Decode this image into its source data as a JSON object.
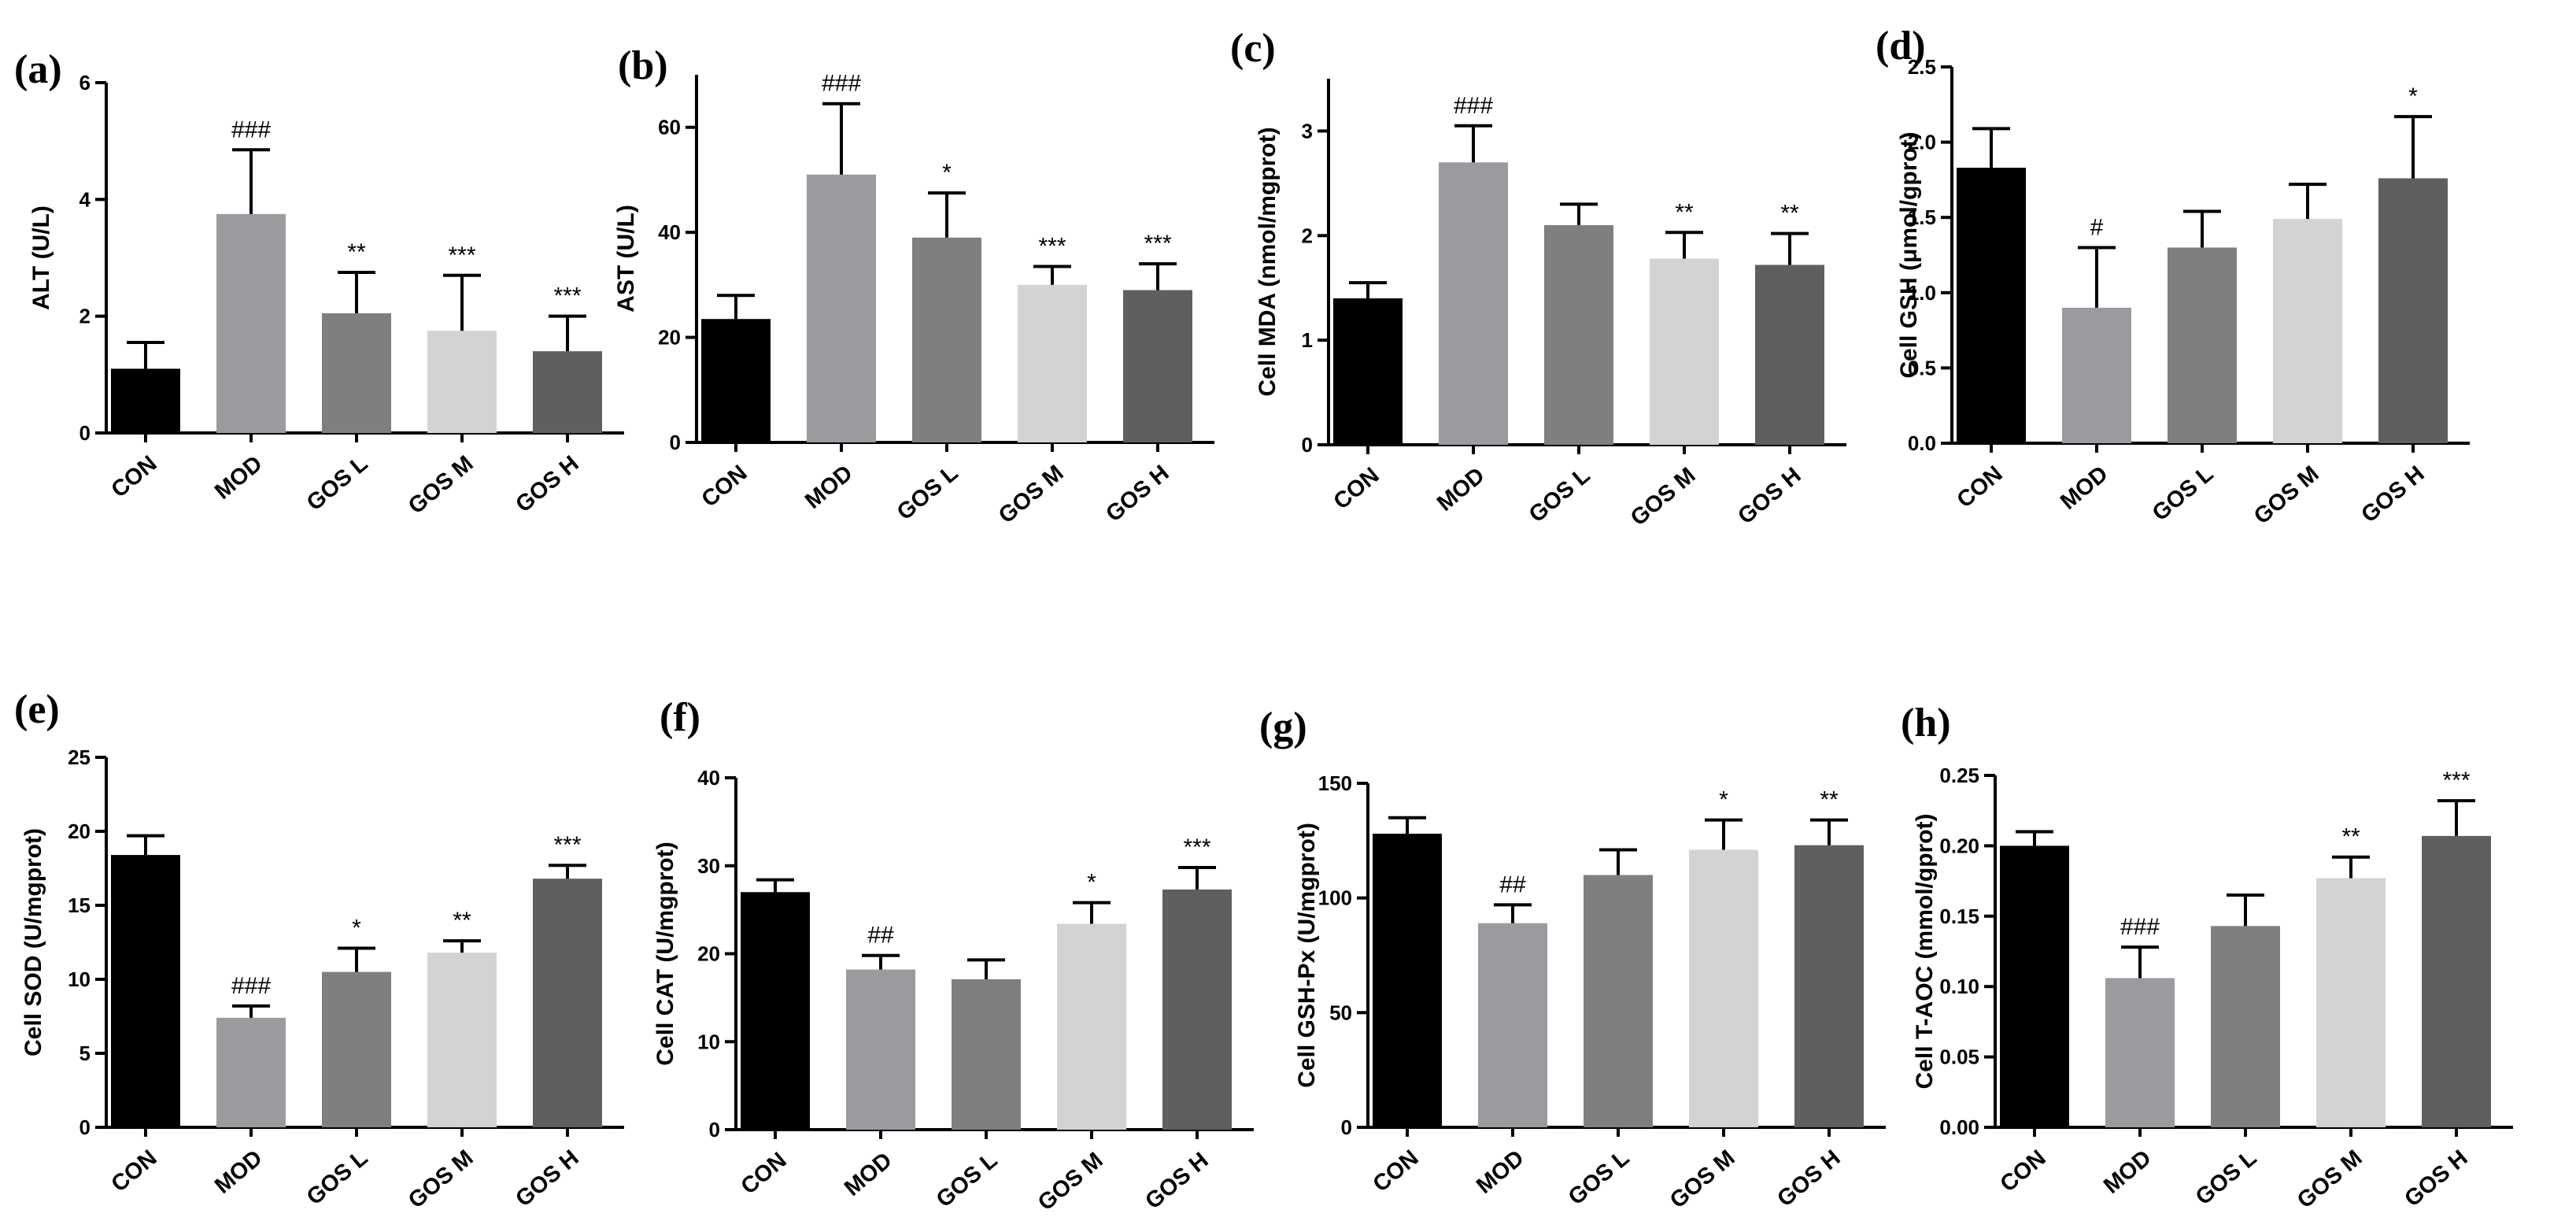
{
  "colors": {
    "CON": "#000000",
    "MOD": "#9b9b9f",
    "GOS L": "#7f7f7f",
    "GOS M": "#d3d3d3",
    "GOS H": "#5f5f5f"
  },
  "chart_data": [
    {
      "type": "bar",
      "panel": "(a)",
      "ylabel": "ALT (U/L)",
      "categories": [
        "CON",
        "MOD",
        "GOS L",
        "GOS M",
        "GOS H"
      ],
      "values": [
        1.1,
        3.75,
        2.05,
        1.75,
        1.4
      ],
      "errors": [
        0.45,
        1.1,
        0.7,
        0.95,
        0.6
      ],
      "annotations": [
        "",
        "###",
        "**",
        "***",
        "***"
      ],
      "ylim": [
        0,
        6
      ],
      "yticks": [
        "0",
        "2",
        "4",
        "6"
      ]
    },
    {
      "type": "bar",
      "panel": "(b)",
      "ylabel": "AST (U/L)",
      "categories": [
        "CON",
        "MOD",
        "GOS L",
        "GOS M",
        "GOS H"
      ],
      "values": [
        23.5,
        51,
        39,
        30,
        29
      ],
      "errors": [
        4.5,
        13.5,
        8.5,
        3.5,
        5
      ],
      "annotations": [
        "",
        "###",
        "*",
        "***",
        "***"
      ],
      "ylim": [
        0,
        70
      ],
      "yticks": [
        "0",
        "20",
        "40",
        "60"
      ]
    },
    {
      "type": "bar",
      "panel": "(c)",
      "ylabel": "Cell MDA (nmol/mgprot)",
      "categories": [
        "CON",
        "MOD",
        "GOS L",
        "GOS M",
        "GOS H"
      ],
      "values": [
        1.4,
        2.7,
        2.1,
        1.78,
        1.72
      ],
      "errors": [
        0.15,
        0.35,
        0.2,
        0.25,
        0.3
      ],
      "annotations": [
        "",
        "###",
        "",
        "**",
        "**"
      ],
      "ylim": [
        0,
        3.5
      ],
      "yticks": [
        "0",
        "1",
        "2",
        "3"
      ]
    },
    {
      "type": "bar",
      "panel": "(d)",
      "ylabel": "Cell GSH (μmol/gprot)",
      "categories": [
        "CON",
        "MOD",
        "GOS L",
        "GOS M",
        "GOS H"
      ],
      "values": [
        1.83,
        0.9,
        1.3,
        1.49,
        1.76
      ],
      "errors": [
        0.26,
        0.4,
        0.24,
        0.23,
        0.41
      ],
      "annotations": [
        "",
        "#",
        "",
        "",
        "*"
      ],
      "ylim": [
        0,
        2.5
      ],
      "yticks": [
        "0.0",
        "0.5",
        "1.0",
        "1.5",
        "2.0",
        "2.5"
      ]
    },
    {
      "type": "bar",
      "panel": "(e)",
      "ylabel": "Cell SOD (U/mgprot)",
      "categories": [
        "CON",
        "MOD",
        "GOS L",
        "GOS M",
        "GOS H"
      ],
      "values": [
        18.4,
        7.4,
        10.5,
        11.8,
        16.8
      ],
      "errors": [
        1.3,
        0.8,
        1.6,
        0.8,
        0.9
      ],
      "annotations": [
        "",
        "###",
        "*",
        "**",
        "***"
      ],
      "ylim": [
        0,
        25
      ],
      "yticks": [
        "0",
        "5",
        "10",
        "15",
        "20",
        "25"
      ]
    },
    {
      "type": "bar",
      "panel": "(f)",
      "ylabel": "Cell CAT (U/mgprot)",
      "categories": [
        "CON",
        "MOD",
        "GOS L",
        "GOS M",
        "GOS H"
      ],
      "values": [
        27,
        18.2,
        17.1,
        23.4,
        27.3
      ],
      "errors": [
        1.4,
        1.6,
        2.2,
        2.4,
        2.5
      ],
      "annotations": [
        "",
        "##",
        "",
        "*",
        "***"
      ],
      "ylim": [
        0,
        40
      ],
      "yticks": [
        "0",
        "10",
        "20",
        "30",
        "40"
      ]
    },
    {
      "type": "bar",
      "panel": "(g)",
      "ylabel": "Cell GSH-Px (U/mgprot)",
      "categories": [
        "CON",
        "MOD",
        "GOS L",
        "GOS M",
        "GOS H"
      ],
      "values": [
        128,
        89,
        110,
        121,
        123
      ],
      "errors": [
        7,
        8,
        11,
        13,
        11
      ],
      "annotations": [
        "",
        "##",
        "",
        "*",
        "**"
      ],
      "ylim": [
        0,
        150
      ],
      "yticks": [
        "0",
        "50",
        "100",
        "150"
      ]
    },
    {
      "type": "bar",
      "panel": "(h)",
      "ylabel": "Cell T-AOC (mmol/gprot)",
      "categories": [
        "CON",
        "MOD",
        "GOS L",
        "GOS M",
        "GOS H"
      ],
      "values": [
        0.2,
        0.106,
        0.143,
        0.177,
        0.207
      ],
      "errors": [
        0.01,
        0.022,
        0.022,
        0.015,
        0.025
      ],
      "annotations": [
        "",
        "###",
        "",
        "**",
        "***"
      ],
      "ylim": [
        0,
        0.25
      ],
      "yticks": [
        "0.00",
        "0.05",
        "0.10",
        "0.15",
        "0.20",
        "0.25"
      ]
    }
  ]
}
